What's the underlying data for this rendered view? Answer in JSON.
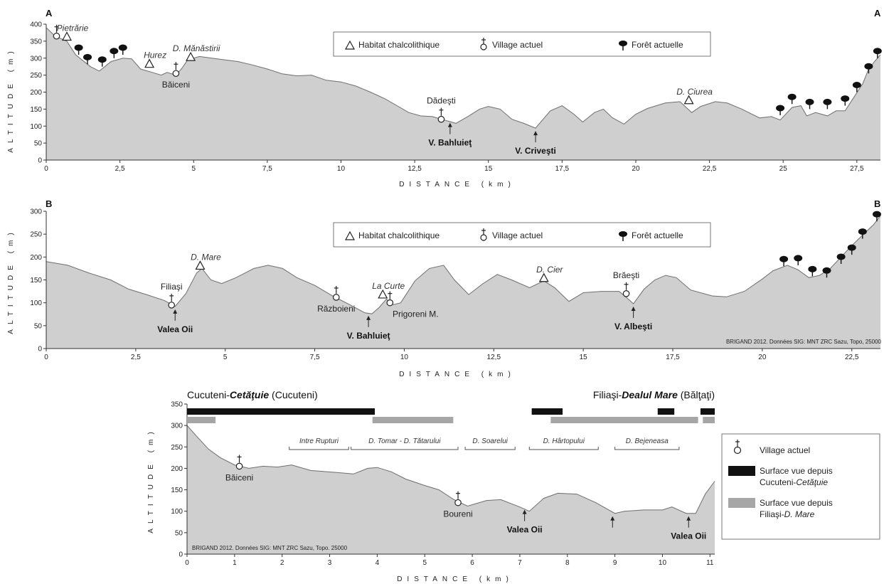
{
  "colors": {
    "terrain_fill": "#cfcfcf",
    "terrain_stroke": "#6e6e6e",
    "seen_cucuteni": "#111111",
    "seen_filiasi": "#a6a6a6"
  },
  "legend_top": {
    "habitat": "Habitat chalcolithique",
    "village": "Village actuel",
    "forest": "Forêt actuelle"
  },
  "chart_data": [
    {
      "type": "area",
      "corner_left": "A",
      "corner_right": "A",
      "ylabel": "ALTITUDE (m)",
      "xlabel": "DISTANCE (km)",
      "xlim": [
        0,
        28.3
      ],
      "ylim": [
        0,
        400
      ],
      "xticks": [
        "0",
        "2,5",
        "5",
        "7,5",
        "10",
        "12,5",
        "15",
        "17,5",
        "20",
        "22,5",
        "25",
        "27,5"
      ],
      "xtick_values": [
        0,
        2.5,
        5,
        7.5,
        10,
        12.5,
        15,
        17.5,
        20,
        22.5,
        25,
        27.5
      ],
      "yticks": [
        0,
        50,
        100,
        150,
        200,
        250,
        300,
        350,
        400
      ],
      "profile": [
        [
          0,
          390
        ],
        [
          0.3,
          365
        ],
        [
          0.7,
          350
        ],
        [
          1,
          310
        ],
        [
          1.5,
          275
        ],
        [
          1.8,
          262
        ],
        [
          2.2,
          290
        ],
        [
          2.6,
          300
        ],
        [
          2.9,
          298
        ],
        [
          3.2,
          268
        ],
        [
          3.6,
          258
        ],
        [
          3.9,
          250
        ],
        [
          4.1,
          258
        ],
        [
          4.4,
          250
        ],
        [
          4.6,
          270
        ],
        [
          4.8,
          295
        ],
        [
          5.2,
          305
        ],
        [
          5.8,
          298
        ],
        [
          6.5,
          290
        ],
        [
          7,
          280
        ],
        [
          7.5,
          268
        ],
        [
          8,
          254
        ],
        [
          8.5,
          248
        ],
        [
          9,
          250
        ],
        [
          9.5,
          235
        ],
        [
          10,
          230
        ],
        [
          10.5,
          218
        ],
        [
          11,
          200
        ],
        [
          11.5,
          180
        ],
        [
          12,
          155
        ],
        [
          12.3,
          140
        ],
        [
          12.7,
          130
        ],
        [
          13.1,
          128
        ],
        [
          13.5,
          118
        ],
        [
          13.9,
          108
        ],
        [
          14.3,
          128
        ],
        [
          14.7,
          150
        ],
        [
          15,
          158
        ],
        [
          15.4,
          150
        ],
        [
          15.8,
          120
        ],
        [
          16.2,
          108
        ],
        [
          16.6,
          94
        ],
        [
          17.1,
          145
        ],
        [
          17.5,
          160
        ],
        [
          17.9,
          135
        ],
        [
          18.2,
          112
        ],
        [
          18.6,
          140
        ],
        [
          18.9,
          150
        ],
        [
          19.2,
          125
        ],
        [
          19.6,
          106
        ],
        [
          20,
          135
        ],
        [
          20.4,
          152
        ],
        [
          21,
          168
        ],
        [
          21.5,
          172
        ],
        [
          21.9,
          140
        ],
        [
          22.2,
          158
        ],
        [
          22.7,
          172
        ],
        [
          23.1,
          168
        ],
        [
          23.6,
          150
        ],
        [
          24.2,
          124
        ],
        [
          24.6,
          128
        ],
        [
          24.9,
          118
        ],
        [
          25.3,
          155
        ],
        [
          25.6,
          160
        ],
        [
          25.8,
          130
        ],
        [
          26.1,
          140
        ],
        [
          26.5,
          130
        ],
        [
          26.8,
          145
        ],
        [
          27.1,
          145
        ],
        [
          27.4,
          185
        ],
        [
          27.7,
          225
        ],
        [
          27.9,
          268
        ],
        [
          28.1,
          290
        ],
        [
          28.3,
          310
        ]
      ],
      "habitats": [
        {
          "x": 0.7,
          "y": 355,
          "label": "Pietrărie"
        },
        {
          "x": 3.5,
          "y": 275,
          "label": "Hurez"
        },
        {
          "x": 4.9,
          "y": 295,
          "label": "D. Mănăstirii"
        },
        {
          "x": 21.8,
          "y": 168,
          "label": "D. Ciurea"
        }
      ],
      "villages": [
        {
          "x": 0.35,
          "y": 365,
          "label": ""
        },
        {
          "x": 4.4,
          "y": 255,
          "label": "Băiceni"
        },
        {
          "x": 13.4,
          "y": 120,
          "label": "Dădeşti"
        }
      ],
      "forests": [
        [
          1.1,
          310
        ],
        [
          1.4,
          282
        ],
        [
          1.9,
          275
        ],
        [
          2.3,
          300
        ],
        [
          2.6,
          310
        ],
        [
          24.9,
          132
        ],
        [
          25.3,
          165
        ],
        [
          25.9,
          150
        ],
        [
          26.5,
          150
        ],
        [
          27.1,
          160
        ],
        [
          27.5,
          200
        ],
        [
          27.9,
          255
        ],
        [
          28.2,
          300
        ]
      ],
      "valleys": [
        {
          "x": 13.7,
          "label": "V. Bahluieţ"
        },
        {
          "x": 16.6,
          "label": "V. Criveşti"
        }
      ]
    },
    {
      "type": "area",
      "corner_left": "B",
      "corner_right": "B",
      "ylabel": "ALTITUDE (m)",
      "xlabel": "DISTANCE (km)",
      "credit": "BRIGAND 2012. Données SIG: MNT ZRC Sazu, Topo, 25000",
      "xlim": [
        0,
        23.3
      ],
      "ylim": [
        0,
        300
      ],
      "xticks": [
        "0",
        "2,5",
        "5",
        "7,5",
        "10",
        "12,5",
        "15",
        "17,5",
        "20",
        "22,5"
      ],
      "xtick_values": [
        0,
        2.5,
        5,
        7.5,
        10,
        12.5,
        15,
        17.5,
        20,
        22.5
      ],
      "yticks": [
        0,
        50,
        100,
        150,
        200,
        250,
        300
      ],
      "profile": [
        [
          0,
          190
        ],
        [
          0.6,
          182
        ],
        [
          1.2,
          165
        ],
        [
          1.8,
          150
        ],
        [
          2.3,
          130
        ],
        [
          2.8,
          118
        ],
        [
          3.3,
          105
        ],
        [
          3.6,
          92
        ],
        [
          3.9,
          120
        ],
        [
          4.2,
          165
        ],
        [
          4.35,
          175
        ],
        [
          4.6,
          150
        ],
        [
          4.9,
          142
        ],
        [
          5.3,
          155
        ],
        [
          5.8,
          175
        ],
        [
          6.2,
          182
        ],
        [
          6.6,
          175
        ],
        [
          7,
          155
        ],
        [
          7.5,
          138
        ],
        [
          8,
          115
        ],
        [
          8.5,
          95
        ],
        [
          8.9,
          78
        ],
        [
          9.1,
          76
        ],
        [
          9.3,
          90
        ],
        [
          9.5,
          108
        ],
        [
          9.7,
          96
        ],
        [
          9.9,
          100
        ],
        [
          10.3,
          148
        ],
        [
          10.7,
          175
        ],
        [
          11.1,
          182
        ],
        [
          11.4,
          150
        ],
        [
          11.8,
          118
        ],
        [
          12.2,
          142
        ],
        [
          12.6,
          162
        ],
        [
          13,
          150
        ],
        [
          13.5,
          133
        ],
        [
          13.9,
          148
        ],
        [
          14.2,
          133
        ],
        [
          14.6,
          103
        ],
        [
          15,
          122
        ],
        [
          15.5,
          125
        ],
        [
          16,
          125
        ],
        [
          16.2,
          112
        ],
        [
          16.4,
          98
        ],
        [
          16.7,
          130
        ],
        [
          17,
          150
        ],
        [
          17.3,
          160
        ],
        [
          17.6,
          155
        ],
        [
          18,
          128
        ],
        [
          18.6,
          115
        ],
        [
          19,
          113
        ],
        [
          19.5,
          125
        ],
        [
          20,
          152
        ],
        [
          20.3,
          170
        ],
        [
          20.7,
          182
        ],
        [
          21,
          172
        ],
        [
          21.3,
          155
        ],
        [
          21.6,
          160
        ],
        [
          21.9,
          175
        ],
        [
          22.2,
          200
        ],
        [
          22.5,
          225
        ],
        [
          22.8,
          248
        ],
        [
          23.1,
          270
        ],
        [
          23.3,
          290
        ]
      ],
      "habitats": [
        {
          "x": 4.3,
          "y": 175,
          "label": "D. Mare"
        },
        {
          "x": 9.4,
          "y": 112,
          "label": "La Curte"
        },
        {
          "x": 13.9,
          "y": 148,
          "label": "D. Cier"
        }
      ],
      "villages": [
        {
          "x": 3.5,
          "y": 95,
          "label": "Filiaşi"
        },
        {
          "x": 8.1,
          "y": 112,
          "label": "Războieni"
        },
        {
          "x": 9.6,
          "y": 100,
          "label": "Prigoreni M."
        },
        {
          "x": 16.2,
          "y": 120,
          "label": "Brăeşti"
        }
      ],
      "forests": [
        [
          20.6,
          180
        ],
        [
          21.0,
          182
        ],
        [
          21.4,
          158
        ],
        [
          21.8,
          155
        ],
        [
          22.2,
          185
        ],
        [
          22.5,
          205
        ],
        [
          22.8,
          240
        ],
        [
          23.2,
          278
        ]
      ],
      "valleys": [
        {
          "x": 3.6,
          "label": "Valea Oii"
        },
        {
          "x": 9.0,
          "label": "V. Bahluieţ"
        },
        {
          "x": 16.4,
          "label": "V. Albeşti"
        }
      ]
    },
    {
      "type": "area",
      "title_left": "Cucuteni-",
      "title_left_bold": "Cetăţuie",
      "title_left_tail": " (Cucuteni)",
      "title_right": "Filiaşi-",
      "title_right_bold": "Dealul Mare",
      "title_right_tail": " (Bălţaţi)",
      "ylabel": "ALTITUDE (m)",
      "xlabel": "DISTANCE (km)",
      "credit": "BRIGAND 2012. Données SIG: MNT ZRC Sazu, Topo. 25000",
      "xlim": [
        0,
        11.1
      ],
      "ylim": [
        0,
        350
      ],
      "xticks": [
        "0",
        "1",
        "2",
        "3",
        "4",
        "5",
        "6",
        "7",
        "8",
        "9",
        "10",
        "11"
      ],
      "xtick_values": [
        0,
        1,
        2,
        3,
        4,
        5,
        6,
        7,
        8,
        9,
        10,
        11
      ],
      "yticks": [
        0,
        50,
        100,
        150,
        200,
        250,
        300,
        350
      ],
      "profile": [
        [
          0,
          300
        ],
        [
          0.2,
          275
        ],
        [
          0.45,
          245
        ],
        [
          0.7,
          225
        ],
        [
          1,
          208
        ],
        [
          1.3,
          200
        ],
        [
          1.6,
          205
        ],
        [
          1.9,
          203
        ],
        [
          2.2,
          208
        ],
        [
          2.6,
          195
        ],
        [
          3.2,
          190
        ],
        [
          3.5,
          187
        ],
        [
          3.8,
          200
        ],
        [
          4,
          202
        ],
        [
          4.3,
          192
        ],
        [
          4.6,
          175
        ],
        [
          5,
          160
        ],
        [
          5.3,
          150
        ],
        [
          5.6,
          128
        ],
        [
          5.9,
          112
        ],
        [
          6.3,
          125
        ],
        [
          6.6,
          127
        ],
        [
          7,
          110
        ],
        [
          7.2,
          100
        ],
        [
          7.5,
          130
        ],
        [
          7.8,
          142
        ],
        [
          8.2,
          140
        ],
        [
          8.6,
          120
        ],
        [
          9,
          95
        ],
        [
          9.2,
          100
        ],
        [
          9.6,
          103
        ],
        [
          10,
          103
        ],
        [
          10.2,
          110
        ],
        [
          10.5,
          95
        ],
        [
          10.7,
          95
        ],
        [
          10.9,
          140
        ],
        [
          11.1,
          170
        ]
      ],
      "villages": [
        {
          "x": 1.1,
          "y": 205,
          "label": "Băiceni"
        },
        {
          "x": 5.7,
          "y": 120,
          "label": "Boureni"
        }
      ],
      "valleys": [
        {
          "x": 7.1,
          "label": "Valea Oii",
          "label_show": true
        },
        {
          "x": 8.95,
          "label": "",
          "label_show": false
        },
        {
          "x": 10.55,
          "label": "Valea Oii",
          "label_show": true
        }
      ],
      "bands": [
        {
          "x0": 2.15,
          "x1": 3.4,
          "label": "Intre Rupturi"
        },
        {
          "x0": 3.45,
          "x1": 5.7,
          "label": "D. Tomar - D. Tătarului"
        },
        {
          "x0": 5.85,
          "x1": 6.9,
          "label": "D. Soarelui"
        },
        {
          "x0": 7.2,
          "x1": 8.65,
          "label": "D. Hârtopului"
        },
        {
          "x0": 9.0,
          "x1": 10.35,
          "label": "D. Bejeneasa"
        }
      ],
      "seen_black": [
        [
          0,
          3.95
        ],
        [
          7.25,
          7.9
        ],
        [
          9.9,
          10.25
        ],
        [
          10.8,
          11.1
        ]
      ],
      "seen_gray": [
        [
          0,
          0.6
        ],
        [
          3.9,
          5.6
        ],
        [
          7.65,
          10.75
        ],
        [
          10.85,
          11.1
        ]
      ],
      "legend": {
        "village": "Village actuel",
        "black_line1": "Surface vue depuis",
        "black_line2_a": "Cucuteni-",
        "black_line2_b": "Cetăţuie",
        "gray_line1": "Surface vue depuis",
        "gray_line2_a": "Filiaşi-",
        "gray_line2_b": "D. Mare"
      }
    }
  ]
}
